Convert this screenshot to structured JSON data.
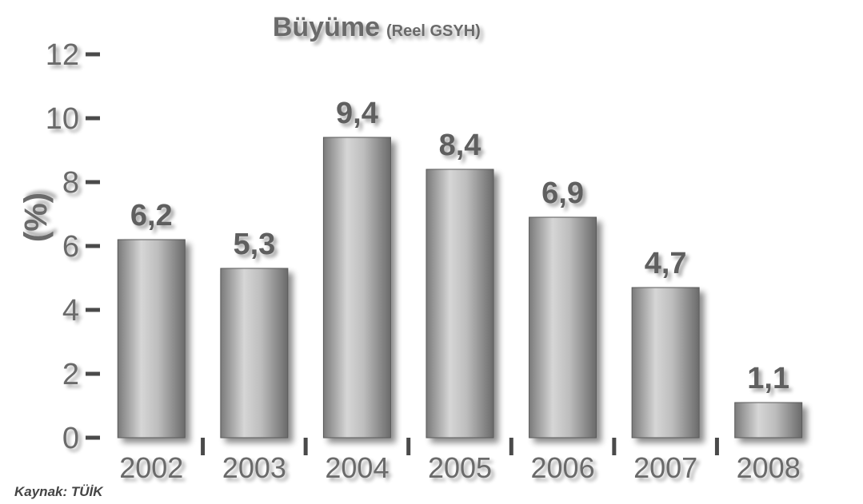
{
  "chart_data": {
    "type": "bar",
    "title": "Büyüme",
    "subtitle": "(Reel GSYH)",
    "ylabel": "(%)",
    "xlabel": "",
    "categories": [
      "2002",
      "2003",
      "2004",
      "2005",
      "2006",
      "2007",
      "2008"
    ],
    "values": [
      6.2,
      5.3,
      9.4,
      8.4,
      6.9,
      4.7,
      1.1
    ],
    "value_labels": [
      "6,2",
      "5,3",
      "9,4",
      "8,4",
      "6,9",
      "4,7",
      "1,1"
    ],
    "ylim": [
      0,
      12
    ],
    "yticks": [
      0,
      2,
      4,
      6,
      8,
      10,
      12
    ],
    "ytick_labels": [
      "0",
      "2",
      "4",
      "6",
      "8",
      "10",
      "12"
    ],
    "grid": false,
    "legend": "none",
    "source": "Kaynak: TÜİK",
    "colors": {
      "bar_dark": "#6f6f6f",
      "bar_light": "#d4d4d4",
      "axis": "#4a4a4a",
      "text": "#6a6a6a",
      "label": "#5e5e5e"
    }
  }
}
